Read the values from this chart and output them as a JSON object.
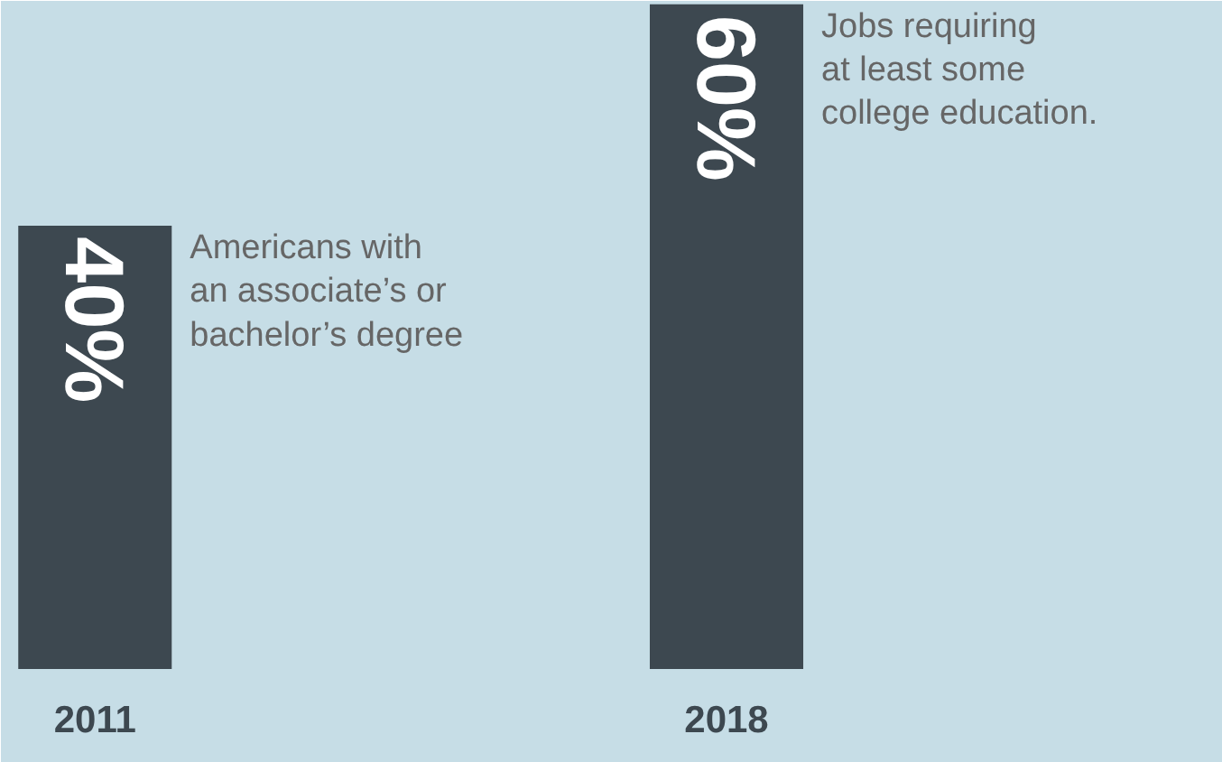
{
  "chart_data": {
    "type": "bar",
    "categories": [
      "2011",
      "2018"
    ],
    "values": [
      40,
      60
    ],
    "value_labels": [
      "40%",
      "60%"
    ],
    "color": "#3d4850",
    "annotations": [
      {
        "text": "Americans with\nan associate’s or\nbachelor’s degree",
        "x": "2011",
        "y": 40
      },
      {
        "text": "Jobs requiring\nat least some\ncollege education.",
        "x": "2018",
        "y": 60
      }
    ]
  }
}
